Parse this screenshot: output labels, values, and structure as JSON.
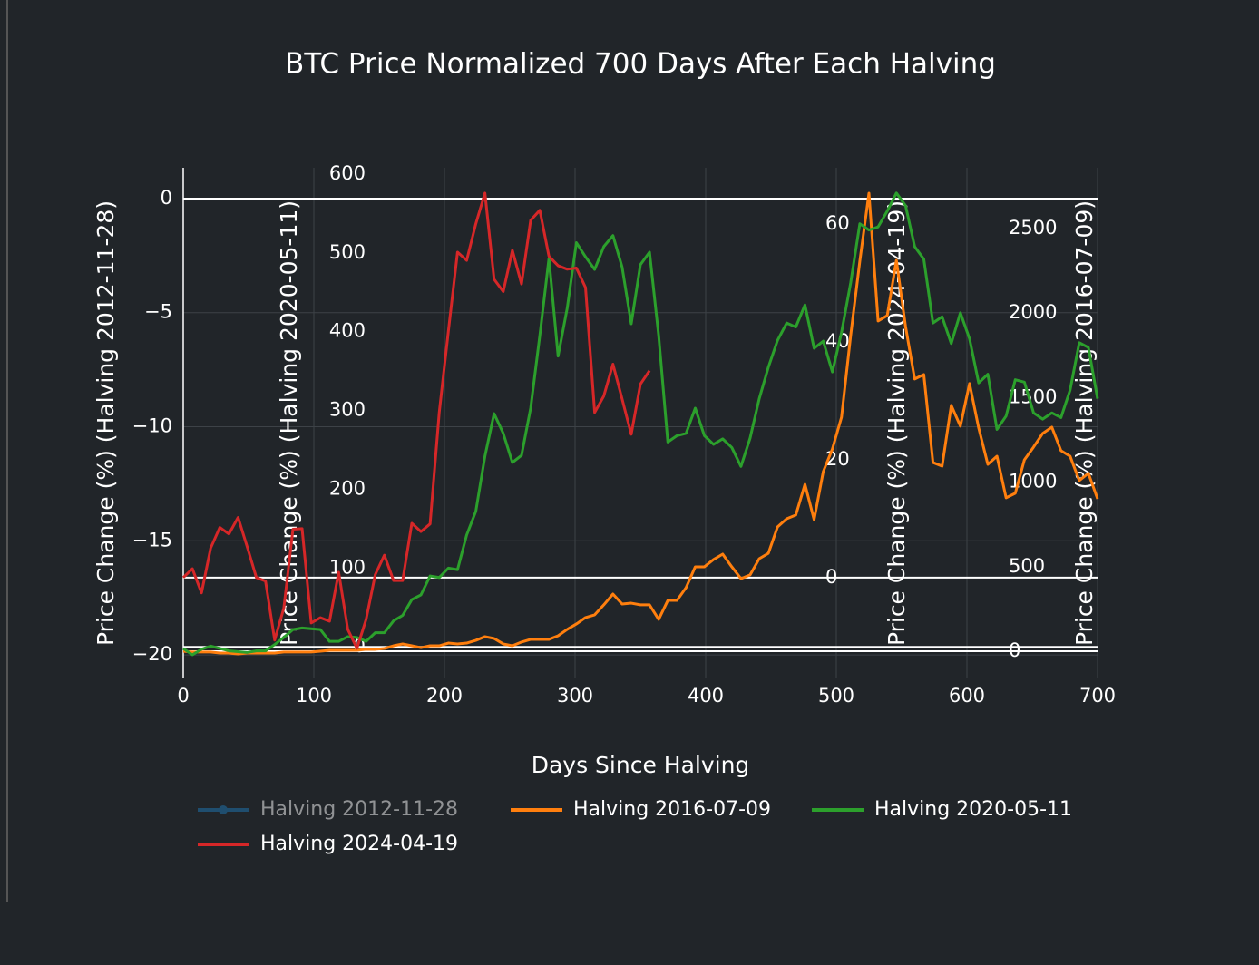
{
  "chart_data": {
    "type": "line",
    "title": "BTC Price Normalized 700 Days After Each Halving",
    "xlabel": "Days Since Halving",
    "ylabel": "Price Change (%) (Halving 2012-11-28)",
    "y2label": "Price Change (%) (Halving 2020-05-11)",
    "y3label": "Price Change (%) (Halving 2024-04-19)",
    "y4label": "Price Change (%) (Halving 2016-07-09)",
    "xlim": [
      0,
      700
    ],
    "xticks": [
      0,
      100,
      200,
      300,
      400,
      500,
      600,
      700
    ],
    "ylim": [
      -21.03,
      1.35
    ],
    "yticks": [
      {
        "value": -20,
        "label": "−20"
      },
      {
        "value": -15,
        "label": "−15"
      },
      {
        "value": -10,
        "label": "−10"
      },
      {
        "value": -5,
        "label": "−5"
      },
      0
    ],
    "y2lim": [
      -40,
      608
    ],
    "y2ticks": [
      0,
      100,
      200,
      300,
      400,
      500,
      600
    ],
    "y3lim": [
      -17.1,
      69.5
    ],
    "y3ticks": [
      0,
      20,
      40,
      60
    ],
    "y4lim": [
      -161,
      2859
    ],
    "y4ticks": [
      0,
      500,
      1000,
      1500,
      2000,
      2500
    ],
    "grid": true,
    "x": [
      0,
      7,
      14,
      21,
      28,
      35,
      42,
      49,
      56,
      63,
      70,
      77,
      84,
      91,
      98,
      105,
      112,
      119,
      126,
      133,
      140,
      147,
      154,
      161,
      168,
      175,
      182,
      189,
      196,
      203,
      210,
      217,
      224,
      231,
      238,
      245,
      252,
      259,
      266,
      273,
      280,
      287,
      294,
      301,
      308,
      315,
      322,
      329,
      336,
      343,
      350,
      357,
      364,
      371,
      378,
      385,
      392,
      399,
      406,
      413,
      420,
      427,
      434,
      441,
      448,
      455,
      462,
      469,
      476,
      483,
      490,
      497,
      504,
      511,
      518,
      525,
      532,
      539,
      546,
      553,
      560,
      567,
      574,
      581,
      588,
      595,
      602,
      609,
      616,
      623,
      630,
      637,
      644,
      651,
      658,
      665,
      672,
      679,
      686,
      693,
      700
    ],
    "series": [
      {
        "name": "Halving 2012-11-28",
        "color": "#1f77b4",
        "axis": "y",
        "visible": "legendonly"
      },
      {
        "name": "Halving 2016-07-09",
        "color": "#ff7f0e",
        "axis": "y4",
        "values": [
          0,
          -5,
          -5,
          -5,
          -11,
          -11,
          -16,
          -11,
          -11,
          -11,
          -11,
          -5,
          -5,
          -5,
          -5,
          0,
          5,
          5,
          5,
          5,
          11,
          11,
          16,
          32,
          43,
          32,
          21,
          32,
          32,
          48,
          43,
          48,
          64,
          86,
          75,
          43,
          32,
          54,
          70,
          70,
          70,
          91,
          129,
          161,
          199,
          215,
          274,
          338,
          279,
          284,
          274,
          274,
          188,
          300,
          300,
          376,
          499,
          499,
          542,
          574,
          499,
          429,
          451,
          547,
          579,
          735,
          783,
          805,
          987,
          778,
          1062,
          1196,
          1384,
          1867,
          2307,
          2709,
          1953,
          1985,
          2312,
          1921,
          1610,
          1636,
          1116,
          1094,
          1454,
          1331,
          1583,
          1320,
          1105,
          1153,
          907,
          934,
          1132,
          1207,
          1288,
          1325,
          1186,
          1153,
          1009,
          1052,
          901
        ]
      },
      {
        "name": "Halving 2020-05-11",
        "color": "#2ca02c",
        "axis": "y2",
        "values": [
          -2,
          -10,
          -3,
          1,
          -2,
          -5,
          -6,
          -7,
          -5,
          -5,
          3,
          12,
          22,
          24,
          23,
          22,
          7,
          7,
          13,
          12,
          7,
          18,
          18,
          33,
          40,
          60,
          66,
          90,
          88,
          100,
          98,
          142,
          172,
          242,
          296,
          271,
          234,
          243,
          303,
          395,
          493,
          369,
          430,
          513,
          495,
          479,
          508,
          522,
          482,
          410,
          485,
          501,
          395,
          260,
          268,
          271,
          303,
          268,
          257,
          264,
          253,
          229,
          265,
          315,
          355,
          389,
          411,
          406,
          434,
          379,
          388,
          349,
          399,
          462,
          537,
          529,
          533,
          553,
          576,
          560,
          508,
          492,
          411,
          419,
          385,
          424,
          391,
          335,
          346,
          276,
          293,
          339,
          336,
          297,
          289,
          297,
          291,
          326,
          386,
          380,
          315
        ]
      },
      {
        "name": "Halving 2024-04-19",
        "color": "#d62728",
        "axis": "y3",
        "values": [
          0,
          1.5,
          -2.6,
          5,
          8.5,
          7.4,
          10.2,
          5.2,
          0,
          -0.6,
          -10.6,
          -5.2,
          8.2,
          8.3,
          -7.7,
          -6.8,
          -7.4,
          0.9,
          -8.8,
          -12,
          -7.1,
          0.5,
          3.8,
          -0.5,
          -0.5,
          9.2,
          7.8,
          9.1,
          28,
          41.8,
          55.2,
          53.8,
          60,
          65.2,
          50.6,
          48.5,
          55.5,
          49.8,
          60.6,
          62.3,
          54.5,
          52.9,
          52.3,
          52.5,
          49.2,
          28,
          30.8,
          36.2,
          30.3,
          24.3,
          32.8,
          35.1,
          null,
          null,
          null,
          null,
          null,
          null,
          null,
          null,
          null,
          null,
          null,
          null,
          null,
          null,
          null,
          null,
          null,
          null,
          null,
          null,
          null,
          null,
          null,
          null,
          null,
          null,
          null,
          null,
          null,
          null,
          null,
          null,
          null,
          null,
          null,
          null,
          null,
          null,
          null,
          null,
          null,
          null,
          null,
          null,
          null,
          null,
          null,
          null,
          null
        ]
      }
    ]
  }
}
